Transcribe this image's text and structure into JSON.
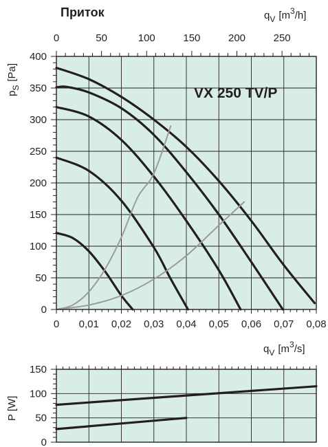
{
  "title": "Приток",
  "model_label": "VX 250 TV/P",
  "colors": {
    "plot_background": "#d9ede8",
    "fan_curve": "#231f20",
    "system_curve": "#9b9b9b"
  },
  "axis_labels": {
    "qv_top_sym": "q",
    "qv_top_sub": "V",
    "qv_top_unit_a": "[m",
    "qv_top_unit_sup": "3",
    "qv_top_unit_b": "/h]",
    "ps_sym": "p",
    "ps_sub": "S",
    "ps_unit": "[Pa]",
    "qv_bot_sym": "q",
    "qv_bot_sub": "V",
    "qv_bot_unit_a": "[m",
    "qv_bot_unit_sup": "3",
    "qv_bot_unit_b": "/s]",
    "p_label": "P [W]"
  },
  "chart_data": [
    {
      "type": "line",
      "title": "Приток",
      "annotation": "VX 250 TV/P",
      "x_bottom": {
        "label": "qV [m3/s]",
        "range": [
          0,
          0.08
        ],
        "ticks": [
          0,
          0.01,
          0.02,
          0.03,
          0.04,
          0.05,
          0.06,
          0.07,
          0.08
        ],
        "tick_labels": [
          "0",
          "0,01",
          "0,02",
          "0,03",
          "0,04",
          "0,05",
          "0,06",
          "0,07",
          "0,08"
        ]
      },
      "x_top": {
        "label": "qV [m3/h]",
        "range": [
          0,
          288
        ],
        "ticks": [
          0,
          50,
          100,
          150,
          200,
          250
        ],
        "tick_labels": [
          "0",
          "50",
          "100",
          "150",
          "200",
          "250"
        ]
      },
      "y": {
        "label": "pS [Pa]",
        "range": [
          0,
          400
        ],
        "ticks": [
          0,
          50,
          100,
          150,
          200,
          250,
          300,
          350,
          400
        ],
        "tick_labels": [
          "0",
          "50",
          "100",
          "150",
          "200",
          "250",
          "300",
          "350",
          "400"
        ]
      },
      "grid": true,
      "series": [
        {
          "kind": "fan",
          "x": [
            0,
            0.005,
            0.01,
            0.015,
            0.02,
            0.0235
          ],
          "y": [
            121,
            113,
            92,
            60,
            22,
            0
          ]
        },
        {
          "kind": "fan",
          "x": [
            0,
            0.01,
            0.02,
            0.03,
            0.035,
            0.0405
          ],
          "y": [
            240,
            219,
            172,
            98,
            50,
            0
          ]
        },
        {
          "kind": "fan",
          "x": [
            0,
            0.01,
            0.02,
            0.03,
            0.04,
            0.05,
            0.0567
          ],
          "y": [
            320,
            305,
            268,
            210,
            140,
            62,
            0
          ]
        },
        {
          "kind": "fan",
          "x": [
            0,
            0.003,
            0.01,
            0.02,
            0.03,
            0.04,
            0.05,
            0.06,
            0.0697
          ],
          "y": [
            351,
            352,
            343,
            318,
            276,
            217,
            150,
            75,
            0
          ]
        },
        {
          "kind": "fan",
          "x": [
            0,
            0.01,
            0.02,
            0.03,
            0.04,
            0.05,
            0.06,
            0.07,
            0.0795
          ],
          "y": [
            382,
            364,
            336,
            300,
            257,
            203,
            140,
            70,
            10
          ]
        },
        {
          "kind": "system",
          "x": [
            0,
            0.005,
            0.01,
            0.015,
            0.02,
            0.025,
            0.03,
            0.0352
          ],
          "y": [
            0,
            7,
            28,
            64,
            114,
            177,
            215,
            290
          ]
        },
        {
          "kind": "system",
          "x": [
            0,
            0.01,
            0.02,
            0.03,
            0.04,
            0.05,
            0.0578
          ],
          "y": [
            0,
            7,
            22,
            48,
            85,
            133,
            170
          ]
        }
      ]
    },
    {
      "type": "line",
      "x": {
        "label": "qV [m3/s]",
        "range": [
          0,
          0.08
        ]
      },
      "y": {
        "label": "P [W]",
        "range": [
          0,
          150
        ],
        "ticks": [
          0,
          50,
          100,
          150
        ],
        "tick_labels": [
          "0",
          "50",
          "100",
          "150"
        ]
      },
      "grid": true,
      "series": [
        {
          "kind": "power",
          "x": [
            0,
            0.08
          ],
          "y": [
            77,
            115
          ]
        },
        {
          "kind": "power",
          "x": [
            0,
            0.04
          ],
          "y": [
            27,
            50
          ]
        }
      ]
    }
  ]
}
